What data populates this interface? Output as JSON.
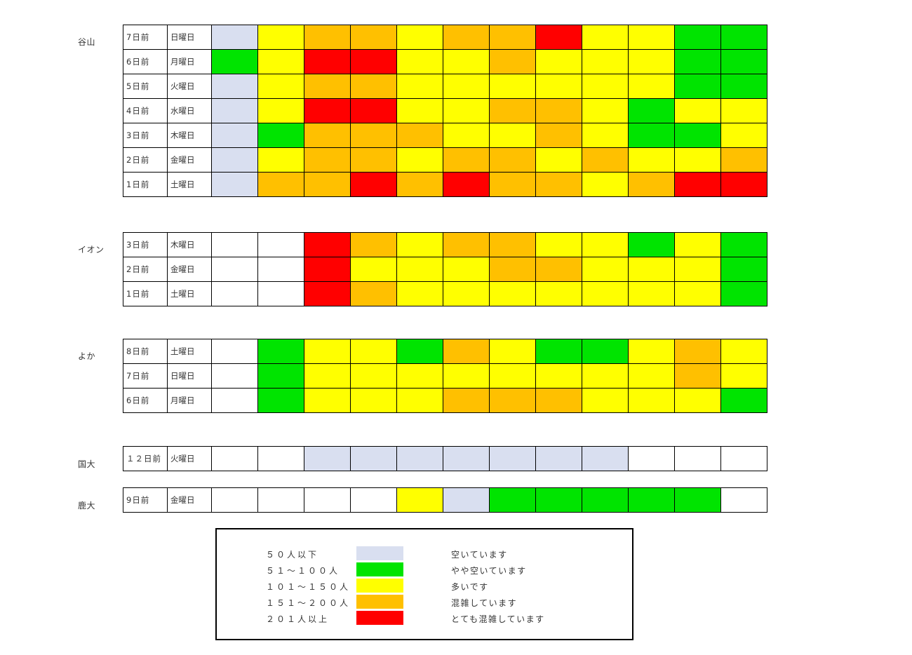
{
  "colors": {
    "empty": "#ffffff",
    "lv1": "#d9dff0",
    "lv2": "#00e400",
    "lv3": "#ffff00",
    "lv4": "#ffc000",
    "lv5": "#ff0000"
  },
  "chart_data": {
    "type": "heatmap",
    "time_slot_count": 12,
    "value_scale": "0 = no data, 1 = 50人以下, 2 = 51～100人, 3 = 101～150人, 4 = 151～200人, 5 = 201人以上",
    "groups": [
      {
        "name": "谷山",
        "rows": [
          {
            "day": "7日前",
            "weekday": "日曜日",
            "levels": [
              1,
              3,
              4,
              4,
              3,
              4,
              4,
              5,
              3,
              3,
              2,
              2
            ]
          },
          {
            "day": "6日前",
            "weekday": "月曜日",
            "levels": [
              2,
              3,
              5,
              5,
              3,
              3,
              4,
              3,
              3,
              3,
              2,
              2
            ]
          },
          {
            "day": "5日前",
            "weekday": "火曜日",
            "levels": [
              1,
              3,
              4,
              4,
              3,
              3,
              3,
              3,
              3,
              3,
              2,
              2
            ]
          },
          {
            "day": "4日前",
            "weekday": "水曜日",
            "levels": [
              1,
              3,
              5,
              5,
              3,
              3,
              4,
              4,
              3,
              2,
              3,
              3
            ]
          },
          {
            "day": "3日前",
            "weekday": "木曜日",
            "levels": [
              1,
              2,
              4,
              4,
              4,
              3,
              3,
              4,
              3,
              2,
              2,
              3
            ]
          },
          {
            "day": "2日前",
            "weekday": "金曜日",
            "levels": [
              1,
              3,
              4,
              4,
              3,
              4,
              4,
              3,
              4,
              3,
              3,
              4
            ]
          },
          {
            "day": "1日前",
            "weekday": "土曜日",
            "levels": [
              1,
              4,
              4,
              5,
              4,
              5,
              4,
              4,
              3,
              4,
              5,
              5
            ]
          }
        ]
      },
      {
        "name": "イオン",
        "rows": [
          {
            "day": "3日前",
            "weekday": "木曜日",
            "levels": [
              0,
              0,
              5,
              4,
              3,
              4,
              4,
              3,
              3,
              2,
              3,
              2
            ]
          },
          {
            "day": "2日前",
            "weekday": "金曜日",
            "levels": [
              0,
              0,
              5,
              3,
              3,
              3,
              4,
              4,
              3,
              3,
              3,
              2
            ]
          },
          {
            "day": "1日前",
            "weekday": "土曜日",
            "levels": [
              0,
              0,
              5,
              4,
              3,
              3,
              3,
              3,
              3,
              3,
              3,
              2
            ]
          }
        ]
      },
      {
        "name": "よか",
        "rows": [
          {
            "day": "8日前",
            "weekday": "土曜日",
            "levels": [
              0,
              2,
              3,
              3,
              2,
              4,
              3,
              2,
              2,
              3,
              4,
              3
            ]
          },
          {
            "day": "7日前",
            "weekday": "日曜日",
            "levels": [
              0,
              2,
              3,
              3,
              3,
              3,
              3,
              3,
              3,
              3,
              4,
              3
            ]
          },
          {
            "day": "6日前",
            "weekday": "月曜日",
            "levels": [
              0,
              2,
              3,
              3,
              3,
              4,
              4,
              4,
              3,
              3,
              3,
              2
            ]
          }
        ]
      },
      {
        "name": "国大",
        "rows": [
          {
            "day": "１２日前",
            "weekday": "火曜日",
            "levels": [
              0,
              0,
              1,
              1,
              1,
              1,
              1,
              1,
              1,
              0,
              0,
              0
            ]
          }
        ]
      },
      {
        "name": "鹿大",
        "rows": [
          {
            "day": "9日前",
            "weekday": "金曜日",
            "levels": [
              0,
              0,
              0,
              0,
              3,
              1,
              2,
              2,
              2,
              2,
              2,
              0
            ]
          }
        ]
      }
    ]
  },
  "legend": {
    "items": [
      {
        "range": "５０人以下",
        "description": "空いています",
        "color": "#d9dff0"
      },
      {
        "range": "５１～１００人",
        "description": "やや空いています",
        "color": "#00e400"
      },
      {
        "range": "１０１～１５０人",
        "description": "多いです",
        "color": "#ffff00"
      },
      {
        "range": "１５１～２００人",
        "description": "混雑しています",
        "color": "#ffc000"
      },
      {
        "range": "２０１人以上",
        "description": "とても混雑しています",
        "color": "#ff0000"
      }
    ]
  }
}
